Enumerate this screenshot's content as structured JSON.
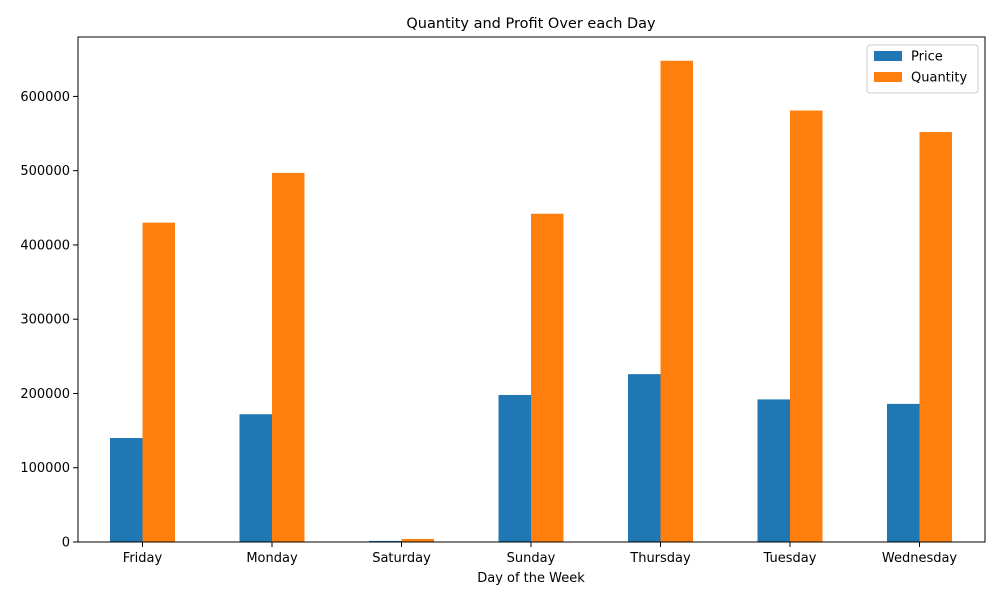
{
  "chart_data": {
    "type": "bar",
    "title": "Quantity and Profit Over each Day",
    "xlabel": "Day of the Week",
    "ylabel": "",
    "categories": [
      "Friday",
      "Monday",
      "Saturday",
      "Sunday",
      "Thursday",
      "Tuesday",
      "Wednesday"
    ],
    "series": [
      {
        "name": "Price",
        "color": "#1f77b4",
        "values": [
          140000,
          172000,
          1500,
          198000,
          226000,
          192000,
          186000
        ]
      },
      {
        "name": "Quantity",
        "color": "#ff7f0e",
        "values": [
          430000,
          497000,
          4000,
          442000,
          648000,
          581000,
          552000
        ]
      }
    ],
    "ylim": [
      0,
      680000
    ],
    "yticks": [
      0,
      100000,
      200000,
      300000,
      400000,
      500000,
      600000
    ],
    "ytick_labels": [
      "0",
      "100000",
      "200000",
      "300000",
      "400000",
      "500000",
      "600000"
    ],
    "grid": false,
    "legend_position": "top-right"
  }
}
